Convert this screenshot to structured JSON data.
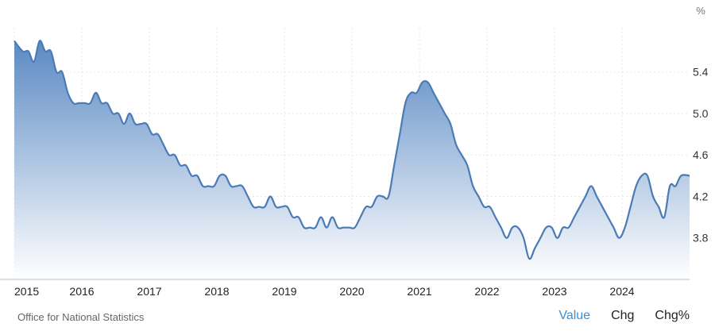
{
  "chart_data": {
    "type": "area",
    "unit": "%",
    "x_ticks": [
      "2015",
      "2016",
      "2017",
      "2018",
      "2019",
      "2020",
      "2021",
      "2022",
      "2023",
      "2024"
    ],
    "y_ticks": [
      "3.8",
      "4.2",
      "4.6",
      "5.0",
      "5.4"
    ],
    "ylim": [
      3.4,
      5.75
    ],
    "xlim": [
      "2015-01",
      "2025-01"
    ],
    "grid": true,
    "line_color": "#4a7bb5",
    "fill_top_color": "#5b8ac4",
    "fill_bottom_color": "#ffffff",
    "series": [
      {
        "x": [
          "2015-01",
          "2015-02",
          "2015-03",
          "2015-04",
          "2015-05",
          "2015-06",
          "2015-07",
          "2015-08",
          "2015-09",
          "2015-10",
          "2015-11",
          "2015-12",
          "2016-01",
          "2016-02",
          "2016-03",
          "2016-04",
          "2016-05",
          "2016-06",
          "2016-07",
          "2016-08",
          "2016-09",
          "2016-10",
          "2016-11",
          "2016-12",
          "2017-01",
          "2017-02",
          "2017-03",
          "2017-04",
          "2017-05",
          "2017-06",
          "2017-07",
          "2017-08",
          "2017-09",
          "2017-10",
          "2017-11",
          "2017-12",
          "2018-01",
          "2018-02",
          "2018-03",
          "2018-04",
          "2018-05",
          "2018-06",
          "2018-07",
          "2018-08",
          "2018-09",
          "2018-10",
          "2018-11",
          "2018-12",
          "2019-01",
          "2019-02",
          "2019-03",
          "2019-04",
          "2019-05",
          "2019-06",
          "2019-07",
          "2019-08",
          "2019-09",
          "2019-10",
          "2019-11",
          "2019-12",
          "2020-01",
          "2020-02",
          "2020-03",
          "2020-04",
          "2020-05",
          "2020-06",
          "2020-07",
          "2020-08",
          "2020-09",
          "2020-10",
          "2020-11",
          "2020-12",
          "2021-01",
          "2021-02",
          "2021-03",
          "2021-04",
          "2021-05",
          "2021-06",
          "2021-07",
          "2021-08",
          "2021-09",
          "2021-10",
          "2021-11",
          "2021-12",
          "2022-01",
          "2022-02",
          "2022-03",
          "2022-04",
          "2022-05",
          "2022-06",
          "2022-07",
          "2022-08",
          "2022-09",
          "2022-10",
          "2022-11",
          "2022-12",
          "2023-01",
          "2023-02",
          "2023-03",
          "2023-04",
          "2023-05",
          "2023-06",
          "2023-07",
          "2023-08",
          "2023-09",
          "2023-10",
          "2023-11",
          "2023-12",
          "2024-01",
          "2024-02",
          "2024-03",
          "2024-04",
          "2024-05",
          "2024-06",
          "2024-07",
          "2024-08",
          "2024-09",
          "2024-10",
          "2024-11",
          "2024-12"
        ],
        "y": [
          5.7,
          5.6,
          5.6,
          5.5,
          5.7,
          5.6,
          5.6,
          5.4,
          5.4,
          5.2,
          5.1,
          5.1,
          5.1,
          5.1,
          5.2,
          5.1,
          5.1,
          5.0,
          5.0,
          4.9,
          5.0,
          4.9,
          4.9,
          4.9,
          4.8,
          4.8,
          4.7,
          4.6,
          4.6,
          4.5,
          4.5,
          4.4,
          4.4,
          4.3,
          4.3,
          4.3,
          4.4,
          4.4,
          4.3,
          4.3,
          4.3,
          4.2,
          4.1,
          4.1,
          4.1,
          4.2,
          4.1,
          4.1,
          4.1,
          4.0,
          4.0,
          3.9,
          3.9,
          3.9,
          4.0,
          3.9,
          4.0,
          3.9,
          3.9,
          3.9,
          3.9,
          4.0,
          4.1,
          4.1,
          4.2,
          4.2,
          4.2,
          4.5,
          4.8,
          5.1,
          5.2,
          5.2,
          5.3,
          5.3,
          5.2,
          5.1,
          5.0,
          4.9,
          4.7,
          4.6,
          4.5,
          4.3,
          4.2,
          4.1,
          4.1,
          4.0,
          3.9,
          3.8,
          3.9,
          3.9,
          3.8,
          3.6,
          3.7,
          3.8,
          3.9,
          3.9,
          3.8,
          3.9,
          3.9,
          4.0,
          4.1,
          4.2,
          4.3,
          4.2,
          4.1,
          4.0,
          3.9,
          3.8,
          3.9,
          4.1,
          4.3,
          4.4,
          4.4,
          4.2,
          4.1,
          4.0,
          4.3,
          4.3,
          4.4,
          4.4
        ]
      }
    ]
  },
  "footer": {
    "source": "Office for National Statistics",
    "tabs": [
      {
        "label": "Value",
        "active": true
      },
      {
        "label": "Chg",
        "active": false
      },
      {
        "label": "Chg%",
        "active": false
      }
    ]
  }
}
